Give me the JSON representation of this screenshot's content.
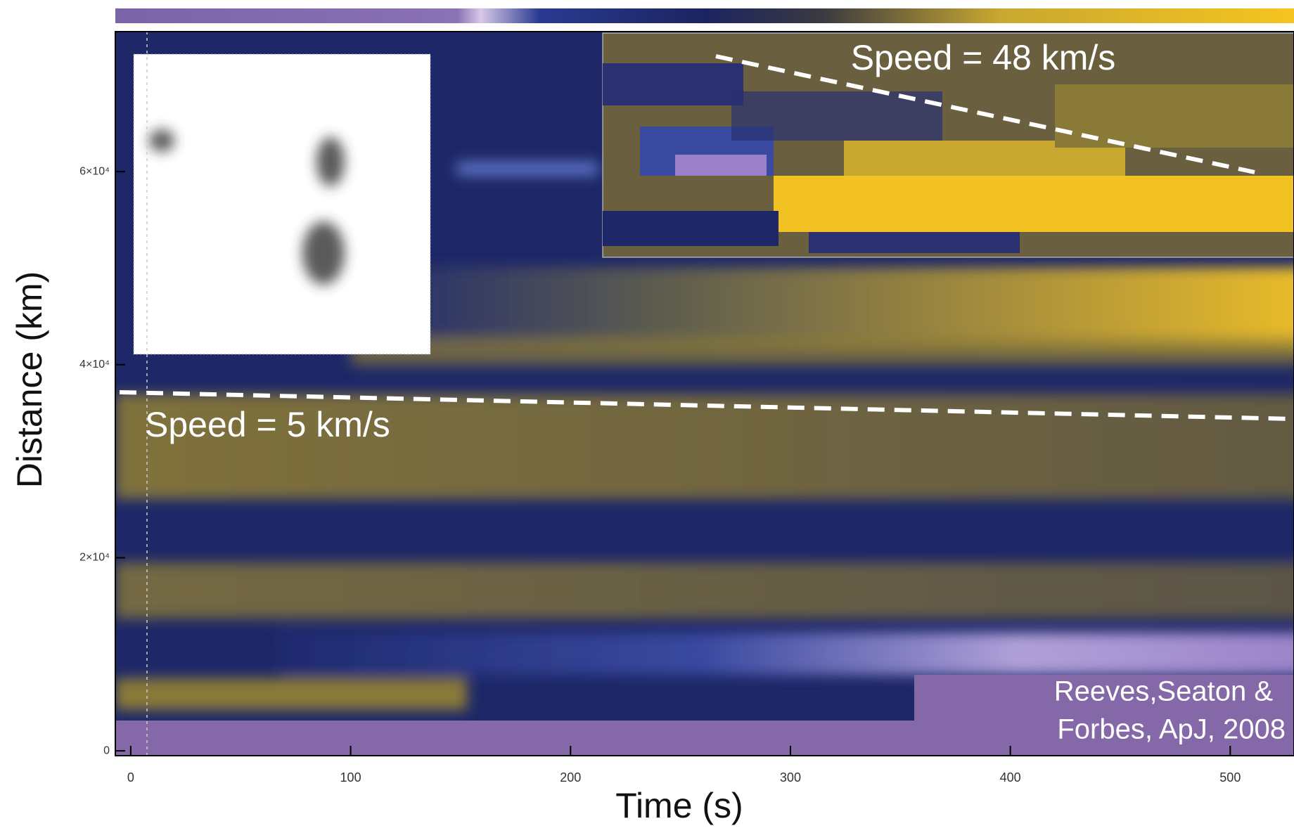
{
  "chart_data": {
    "type": "heatmap",
    "x_label": "Time (s)",
    "y_label": "Distance (km)",
    "xlim": [
      -7,
      529
    ],
    "ylim": [
      -500,
      74500
    ],
    "xticks": [
      0,
      100,
      200,
      300,
      400,
      500
    ],
    "yticks": [
      0,
      {
        "value": 20000,
        "label": "2×10⁴"
      },
      {
        "value": 40000,
        "label": "4×10⁴"
      },
      {
        "value": 60000,
        "label": "6×10⁴"
      }
    ],
    "annotations": [
      "Speed = 48 km/s",
      "Speed = 5 km/s"
    ],
    "credit": [
      "Reeves,Seaton &",
      "Forbes, ApJ, 2008"
    ]
  }
}
